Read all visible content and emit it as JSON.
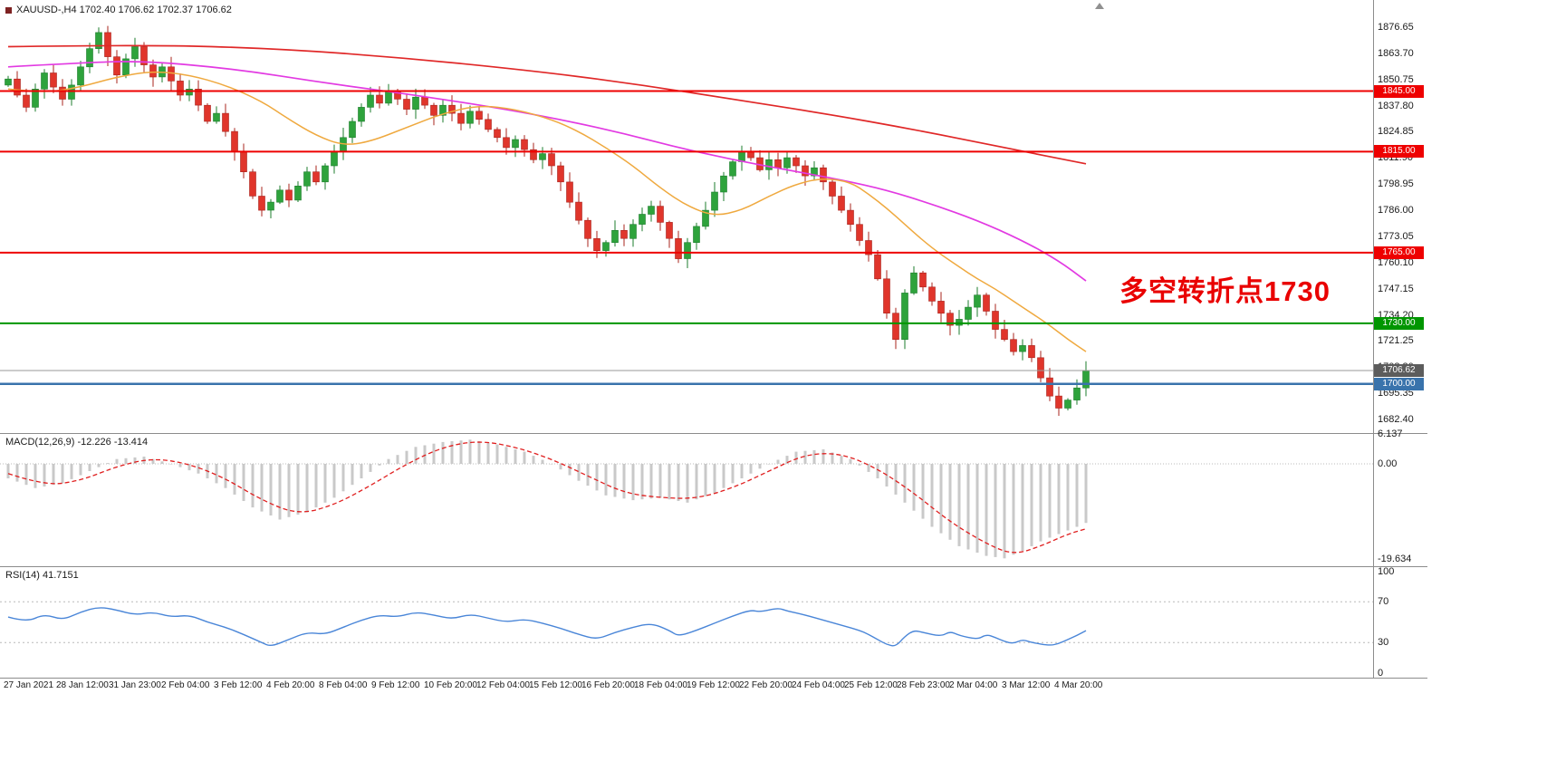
{
  "window": {
    "title": "XAUUSD-,H4 1702.40 1706.62 1702.37 1706.62",
    "symbol": "XAUUSD-",
    "timeframe": "H4",
    "ohlc": {
      "open": "1702.40",
      "high": "1706.62",
      "low": "1702.37",
      "close": "1706.62"
    }
  },
  "annotation": {
    "text": "多空转折点1730",
    "color": "#e90000"
  },
  "colors": {
    "background": "#ffffff",
    "up_candle": "#2ea33c",
    "up_candle_border": "#1d7d2c",
    "down_candle": "#e0352b",
    "down_candle_border": "#a8241d",
    "ma_slow": "#e02828",
    "ma_mid": "#e23ae2",
    "ma_fast": "#efa93f",
    "macd_hist": "#c9c9c9",
    "macd_signal": "#e02020",
    "rsi": "#4a86d8",
    "separator": "#8c8c8c",
    "axis_text": "#1a1a1a"
  },
  "price_axis": {
    "labels": [
      "1876.65",
      "1863.70",
      "1850.75",
      "1837.80",
      "1824.85",
      "1811.90",
      "1798.95",
      "1786.00",
      "1773.05",
      "1760.10",
      "1747.15",
      "1734.20",
      "1721.25",
      "1708.30",
      "1695.35",
      "1682.40"
    ]
  },
  "hlines": [
    {
      "price": 1845.0,
      "label": "1845.00",
      "color": "#ee0000",
      "width": 2
    },
    {
      "price": 1815.0,
      "label": "1815.00",
      "color": "#ee0000",
      "width": 2
    },
    {
      "price": 1765.0,
      "label": "1765.00",
      "color": "#ee0000",
      "width": 2
    },
    {
      "price": 1730.0,
      "label": "1730.00",
      "color": "#009600",
      "width": 2
    },
    {
      "price": 1700.0,
      "label": "1700.00",
      "color": "#3973ac",
      "width": 2.5
    }
  ],
  "current_price": {
    "value": 1706.62,
    "label": "1706.62",
    "line_color": "#9a9a9a",
    "badge_color": "#5c5c5c"
  },
  "time_axis": {
    "labels": [
      "27 Jan 2021",
      "28 Jan 12:00",
      "31 Jan 23:00",
      "2 Feb 04:00",
      "3 Feb 12:00",
      "4 Feb 20:00",
      "8 Feb 04:00",
      "9 Feb 12:00",
      "10 Feb 20:00",
      "12 Feb 04:00",
      "15 Feb 12:00",
      "16 Feb 20:00",
      "18 Feb 04:00",
      "19 Feb 12:00",
      "22 Feb 20:00",
      "24 Feb 04:00",
      "25 Feb 12:00",
      "28 Feb 23:00",
      "2 Mar 04:00",
      "3 Mar 12:00",
      "4 Mar 20:00"
    ]
  },
  "chart_data": {
    "type": "candlestick",
    "symbol": "XAUUSD",
    "period": "H4",
    "main": {
      "open_first": 1848,
      "closes": [
        1851,
        1843,
        1837,
        1846,
        1854,
        1847,
        1841,
        1848,
        1857,
        1866,
        1874,
        1862,
        1853,
        1861,
        1867,
        1858,
        1852,
        1857,
        1850,
        1843,
        1846,
        1838,
        1830,
        1834,
        1825,
        1815,
        1805,
        1793,
        1786,
        1790,
        1796,
        1791,
        1798,
        1805,
        1800,
        1808,
        1815,
        1822,
        1830,
        1837,
        1843,
        1839,
        1845,
        1841,
        1836,
        1842,
        1838,
        1833,
        1838,
        1834,
        1829,
        1835,
        1831,
        1826,
        1822,
        1817,
        1821,
        1816,
        1811,
        1814,
        1808,
        1800,
        1790,
        1781,
        1772,
        1766,
        1770,
        1776,
        1772,
        1779,
        1784,
        1788,
        1780,
        1772,
        1762,
        1770,
        1778,
        1786,
        1795,
        1803,
        1810,
        1815,
        1812,
        1806,
        1811,
        1807,
        1812,
        1808,
        1803,
        1807,
        1800,
        1793,
        1786,
        1779,
        1771,
        1764,
        1752,
        1735,
        1722,
        1745,
        1755,
        1748,
        1741,
        1735,
        1729,
        1732,
        1738,
        1744,
        1736,
        1727,
        1722,
        1716,
        1719,
        1713,
        1703,
        1694,
        1688,
        1692,
        1698,
        1706.62
      ],
      "wick_overrides": {
        "10": {
          "high": 1876.5
        },
        "98": {
          "low": 1717.3
        },
        "116": {
          "low": 1684.2
        }
      },
      "ma_slow_red": [
        [
          0,
          1867
        ],
        [
          15,
          1868
        ],
        [
          30,
          1866
        ],
        [
          45,
          1861
        ],
        [
          60,
          1854
        ],
        [
          70,
          1848
        ],
        [
          80,
          1841
        ],
        [
          90,
          1834
        ],
        [
          100,
          1826
        ],
        [
          110,
          1817
        ],
        [
          119,
          1809
        ]
      ],
      "ma_mid_magenta": [
        [
          0,
          1857
        ],
        [
          8,
          1859
        ],
        [
          15,
          1860
        ],
        [
          25,
          1856
        ],
        [
          35,
          1849
        ],
        [
          45,
          1843
        ],
        [
          55,
          1836
        ],
        [
          62,
          1830
        ],
        [
          68,
          1824
        ],
        [
          74,
          1817
        ],
        [
          80,
          1811
        ],
        [
          86,
          1806
        ],
        [
          92,
          1801
        ],
        [
          97,
          1796
        ],
        [
          102,
          1789
        ],
        [
          107,
          1781
        ],
        [
          112,
          1771
        ],
        [
          116,
          1761
        ],
        [
          119,
          1751
        ]
      ],
      "ma_fast_orange": [
        [
          0,
          1846
        ],
        [
          4,
          1844
        ],
        [
          8,
          1847
        ],
        [
          12,
          1852
        ],
        [
          16,
          1855
        ],
        [
          20,
          1853
        ],
        [
          24,
          1848
        ],
        [
          28,
          1840
        ],
        [
          31,
          1831
        ],
        [
          34,
          1823
        ],
        [
          37,
          1818
        ],
        [
          40,
          1820
        ],
        [
          44,
          1827
        ],
        [
          48,
          1834
        ],
        [
          52,
          1838
        ],
        [
          56,
          1836
        ],
        [
          60,
          1831
        ],
        [
          63,
          1825
        ],
        [
          66,
          1817
        ],
        [
          69,
          1808
        ],
        [
          72,
          1797
        ],
        [
          75,
          1788
        ],
        [
          78,
          1783
        ],
        [
          81,
          1786
        ],
        [
          84,
          1793
        ],
        [
          87,
          1799
        ],
        [
          90,
          1802
        ],
        [
          93,
          1800
        ],
        [
          95,
          1794
        ],
        [
          97,
          1787
        ],
        [
          99,
          1779
        ],
        [
          101,
          1771
        ],
        [
          103,
          1764
        ],
        [
          105,
          1758
        ],
        [
          107,
          1752
        ],
        [
          109,
          1747
        ],
        [
          111,
          1741
        ],
        [
          113,
          1735
        ],
        [
          115,
          1729
        ],
        [
          117,
          1722
        ],
        [
          119,
          1716
        ]
      ]
    },
    "macd": {
      "label": "MACD(12,26,9) -12.226 -13.414",
      "value_main": -12.226,
      "value_signal": -13.414,
      "axis": [
        {
          "value": 6.137,
          "label": "6.137"
        },
        {
          "value": 0,
          "label": "0.00"
        },
        {
          "value": -19.634,
          "label": "-19.634"
        }
      ],
      "histogram_anchors": [
        [
          0,
          -3
        ],
        [
          3,
          -5
        ],
        [
          6,
          -4
        ],
        [
          9,
          -1.5
        ],
        [
          12,
          1
        ],
        [
          15,
          1.5
        ],
        [
          18,
          0
        ],
        [
          21,
          -2
        ],
        [
          24,
          -5
        ],
        [
          27,
          -9
        ],
        [
          30,
          -11.5
        ],
        [
          33,
          -10
        ],
        [
          36,
          -7
        ],
        [
          39,
          -3
        ],
        [
          42,
          1
        ],
        [
          45,
          3.5
        ],
        [
          48,
          4.5
        ],
        [
          51,
          5
        ],
        [
          54,
          4
        ],
        [
          57,
          2.5
        ],
        [
          60,
          0
        ],
        [
          63,
          -3.5
        ],
        [
          66,
          -6.5
        ],
        [
          69,
          -7.5
        ],
        [
          72,
          -7
        ],
        [
          75,
          -8
        ],
        [
          78,
          -6
        ],
        [
          81,
          -3
        ],
        [
          84,
          0
        ],
        [
          87,
          2.5
        ],
        [
          90,
          3
        ],
        [
          93,
          1
        ],
        [
          96,
          -3
        ],
        [
          99,
          -8
        ],
        [
          102,
          -13
        ],
        [
          105,
          -17
        ],
        [
          108,
          -19
        ],
        [
          110,
          -19.5
        ],
        [
          112,
          -18
        ],
        [
          114,
          -16
        ],
        [
          116,
          -14.5
        ],
        [
          118,
          -13
        ],
        [
          119,
          -12.2
        ]
      ],
      "signal_anchors": [
        [
          0,
          -2
        ],
        [
          4,
          -4.5
        ],
        [
          8,
          -3.5
        ],
        [
          12,
          -0.5
        ],
        [
          16,
          1.2
        ],
        [
          20,
          0
        ],
        [
          24,
          -3
        ],
        [
          28,
          -7.5
        ],
        [
          32,
          -10.5
        ],
        [
          36,
          -8.5
        ],
        [
          40,
          -4.5
        ],
        [
          44,
          0
        ],
        [
          48,
          3.5
        ],
        [
          52,
          4.8
        ],
        [
          56,
          3.5
        ],
        [
          60,
          1
        ],
        [
          64,
          -2.5
        ],
        [
          68,
          -6
        ],
        [
          72,
          -7
        ],
        [
          76,
          -7.2
        ],
        [
          80,
          -5
        ],
        [
          84,
          -1.5
        ],
        [
          88,
          2
        ],
        [
          92,
          2.2
        ],
        [
          96,
          -1
        ],
        [
          100,
          -6
        ],
        [
          104,
          -12
        ],
        [
          108,
          -16.5
        ],
        [
          111,
          -18.8
        ],
        [
          114,
          -17
        ],
        [
          117,
          -14.5
        ],
        [
          119,
          -13.414
        ]
      ]
    },
    "rsi": {
      "label": "RSI(14) 41.7151",
      "value": 41.7151,
      "levels": [
        70,
        30
      ],
      "axis": [
        {
          "value": 100,
          "label": "100"
        },
        {
          "value": 70,
          "label": "70"
        },
        {
          "value": 30,
          "label": "30"
        },
        {
          "value": 0,
          "label": "0"
        }
      ],
      "anchors": [
        [
          0,
          55
        ],
        [
          2,
          50
        ],
        [
          4,
          58
        ],
        [
          6,
          52
        ],
        [
          8,
          60
        ],
        [
          10,
          65
        ],
        [
          12,
          62
        ],
        [
          14,
          57
        ],
        [
          16,
          60
        ],
        [
          18,
          55
        ],
        [
          20,
          57
        ],
        [
          22,
          50
        ],
        [
          24,
          45
        ],
        [
          26,
          38
        ],
        [
          28,
          30
        ],
        [
          29,
          26
        ],
        [
          31,
          33
        ],
        [
          33,
          40
        ],
        [
          35,
          38
        ],
        [
          37,
          45
        ],
        [
          39,
          52
        ],
        [
          41,
          57
        ],
        [
          43,
          55
        ],
        [
          45,
          60
        ],
        [
          47,
          57
        ],
        [
          49,
          53
        ],
        [
          51,
          58
        ],
        [
          53,
          54
        ],
        [
          55,
          50
        ],
        [
          57,
          53
        ],
        [
          59,
          49
        ],
        [
          61,
          44
        ],
        [
          63,
          38
        ],
        [
          65,
          33
        ],
        [
          67,
          40
        ],
        [
          69,
          45
        ],
        [
          71,
          49
        ],
        [
          73,
          42
        ],
        [
          74,
          36
        ],
        [
          76,
          42
        ],
        [
          78,
          49
        ],
        [
          80,
          56
        ],
        [
          82,
          62
        ],
        [
          83,
          60
        ],
        [
          85,
          64
        ],
        [
          86,
          61
        ],
        [
          88,
          57
        ],
        [
          90,
          52
        ],
        [
          92,
          47
        ],
        [
          94,
          42
        ],
        [
          95,
          38
        ],
        [
          96,
          33
        ],
        [
          97,
          28
        ],
        [
          98,
          26
        ],
        [
          99,
          36
        ],
        [
          100,
          42
        ],
        [
          101,
          40
        ],
        [
          103,
          36
        ],
        [
          104,
          41
        ],
        [
          105,
          37
        ],
        [
          107,
          33
        ],
        [
          108,
          38
        ],
        [
          109,
          35
        ],
        [
          110,
          31
        ],
        [
          111,
          29
        ],
        [
          112,
          33
        ],
        [
          113,
          30
        ],
        [
          115,
          27
        ],
        [
          116,
          29
        ],
        [
          117,
          33
        ],
        [
          118,
          37
        ],
        [
          119,
          41.7
        ]
      ]
    }
  }
}
